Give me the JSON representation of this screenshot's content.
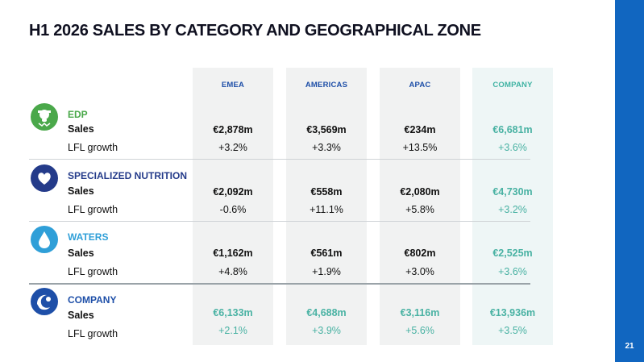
{
  "title": "H1 2026 SALES BY CATEGORY AND GEOGRAPHICAL ZONE",
  "page_number": "21",
  "columns": [
    "EMEA",
    "AMERICAS",
    "APAC",
    "COMPANY"
  ],
  "row_labels": {
    "sales": "Sales",
    "lfl": "LFL growth"
  },
  "categories": [
    {
      "name": "EDP",
      "color": "#4aa84a",
      "icon": "cow-icon",
      "sales": [
        "€2,878m",
        "€3,569m",
        "€234m",
        "€6,681m"
      ],
      "lfl": [
        "+3.2%",
        "+3.3%",
        "+13.5%",
        "+3.6%"
      ]
    },
    {
      "name": "SPECIALIZED NUTRITION",
      "color": "#243b8a",
      "icon": "heart-icon",
      "sales": [
        "€2,092m",
        "€558m",
        "€2,080m",
        "€4,730m"
      ],
      "lfl": [
        "-0.6%",
        "+11.1%",
        "+5.8%",
        "+3.2%"
      ]
    },
    {
      "name": "WATERS",
      "color": "#2f9fd8",
      "icon": "water-drop-icon",
      "sales": [
        "€1,162m",
        "€561m",
        "€802m",
        "€2,525m"
      ],
      "lfl": [
        "+4.8%",
        "+1.9%",
        "+3.0%",
        "+3.6%"
      ]
    },
    {
      "name": "COMPANY",
      "color": "#1e4fa8",
      "icon": "company-logo-icon",
      "sales": [
        "€6,133m",
        "€4,688m",
        "€3,116m",
        "€13,936m"
      ],
      "lfl": [
        "+2.1%",
        "+3.9%",
        "+5.6%",
        "+3.5%"
      ]
    }
  ],
  "colors": {
    "accent_blue": "#1166c0",
    "company_teal": "#49b2a3"
  }
}
